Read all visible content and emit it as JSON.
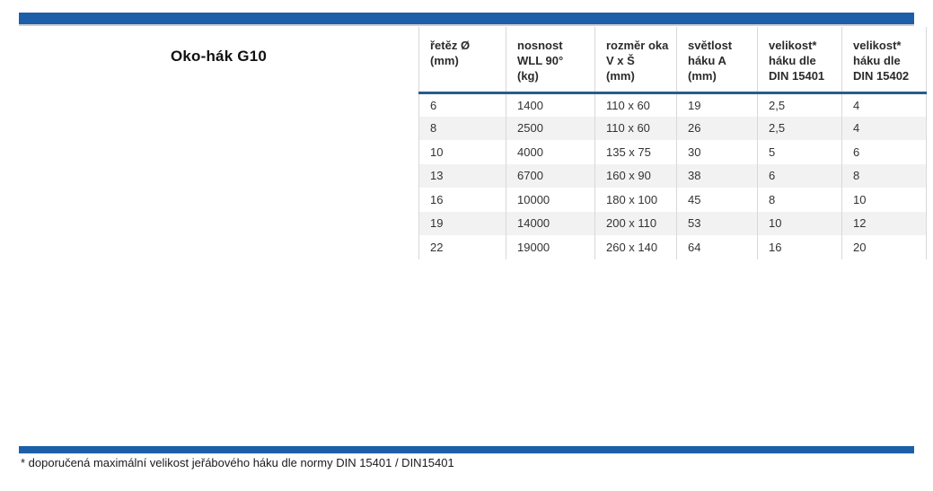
{
  "page": {
    "title": "Oko-hák G10",
    "footnote": "* doporučená maximální velikost jeřábového háku dle normy DIN 15401 / DIN15401"
  },
  "colors": {
    "bar_blue": "#1d5ea9",
    "rule_blue": "#275d8b",
    "row_alt": "#f2f2f2",
    "cell_border": "#d8d8d8",
    "text": "#333333"
  },
  "table": {
    "columns": [
      {
        "label_lines": [
          "řetěz Ø",
          "(mm)"
        ]
      },
      {
        "label_lines": [
          "nosnost",
          "WLL 90°",
          "(kg)"
        ]
      },
      {
        "label_lines": [
          "rozměr oka",
          "V x Š",
          "(mm)"
        ]
      },
      {
        "label_lines": [
          "světlost",
          "háku A",
          "(mm)"
        ]
      },
      {
        "label_lines": [
          "velikost*",
          "háku dle",
          "DIN 15401"
        ]
      },
      {
        "label_lines": [
          "velikost*",
          "háku dle",
          "DIN 15402"
        ]
      }
    ],
    "rows": [
      [
        "6",
        "1400",
        "110 x 60",
        "19",
        "2,5",
        "4"
      ],
      [
        "8",
        "2500",
        "110 x 60",
        "26",
        "2,5",
        "4"
      ],
      [
        "10",
        "4000",
        "135 x 75",
        "30",
        "5",
        "6"
      ],
      [
        "13",
        "6700",
        "160 x 90",
        "38",
        "6",
        "8"
      ],
      [
        "16",
        "10000",
        "180 x 100",
        "45",
        "8",
        "10"
      ],
      [
        "19",
        "14000",
        "200 x 110",
        "53",
        "10",
        "12"
      ],
      [
        "22",
        "19000",
        "260 x 140",
        "64",
        "16",
        "20"
      ]
    ]
  }
}
